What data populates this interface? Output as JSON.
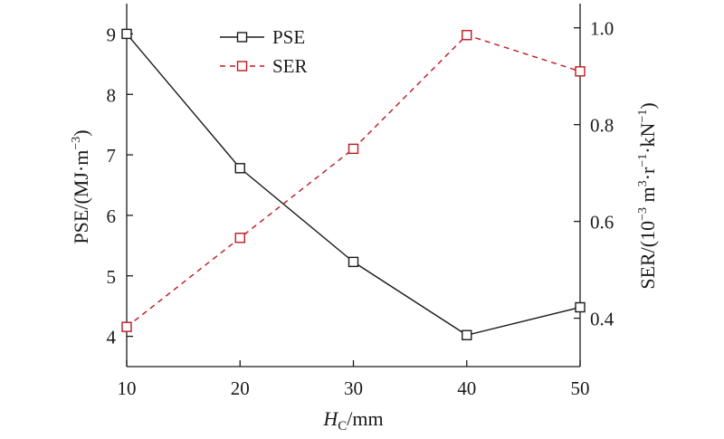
{
  "chart_data": {
    "type": "line",
    "x": [
      10,
      20,
      30,
      40,
      50
    ],
    "xlim": [
      10,
      50
    ],
    "xticks": [
      "10",
      "20",
      "30",
      "40",
      "50"
    ],
    "xlabel": {
      "main": "H",
      "sub": "C",
      "rest": "/mm"
    },
    "ylim_left": [
      3.5,
      9.5
    ],
    "yticks_left": [
      "4",
      "5",
      "6",
      "7",
      "8",
      "9"
    ],
    "ylabel_left": {
      "a": "PSE/(MJ·m",
      "b": "−3",
      "c": ")"
    },
    "ylim_right": [
      0.3,
      1.05
    ],
    "yticks_right": [
      "0.4",
      "0.6",
      "0.8",
      "1.0"
    ],
    "ylabel_right": {
      "a": "SER/(10",
      "b": "−3",
      "c": " m",
      "d": "3",
      "e": "·r",
      "f": "−1",
      "g": "·kN",
      "h": "−1",
      "i": ")"
    },
    "series": [
      {
        "name": "PSE",
        "axis": "left",
        "values": [
          9.0,
          6.78,
          5.23,
          4.02,
          4.48
        ],
        "color": "#1a1a1a",
        "dash": "none",
        "marker": "square-open"
      },
      {
        "name": "SER",
        "axis": "right",
        "values": [
          0.382,
          0.566,
          0.75,
          0.985,
          0.91
        ],
        "color": "#c0161e",
        "dash": "6,5",
        "marker": "square-open"
      }
    ],
    "legend_position": "top-left",
    "grid": false
  }
}
